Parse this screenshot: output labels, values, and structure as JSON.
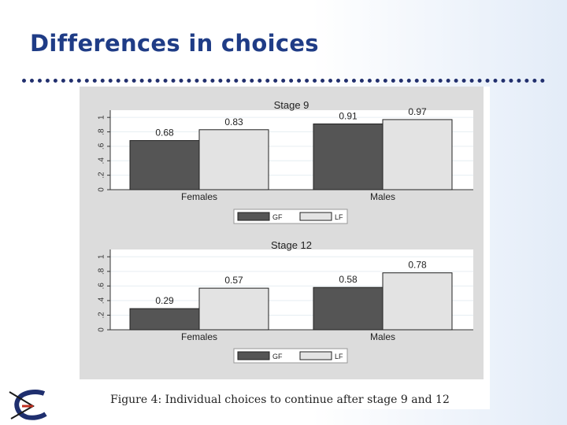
{
  "slide": {
    "title": "Differences in choices",
    "caption": "Figure 4: Individual choices to continue after stage 9 and 12"
  },
  "colors": {
    "title": "#1f3c86",
    "gf": "#555555",
    "lf": "#e3e3e3",
    "panel": "#dcdcdc"
  },
  "chart_data": [
    {
      "type": "bar",
      "title": "Stage 9",
      "categories": [
        "Females",
        "Males"
      ],
      "series": [
        {
          "name": "GF",
          "values": [
            0.68,
            0.91
          ]
        },
        {
          "name": "LF",
          "values": [
            0.83,
            0.97
          ]
        }
      ],
      "data_labels": [
        "0.68",
        "0.83",
        "0.91",
        "0.97"
      ],
      "yticks": [
        "0",
        ".2",
        ".4",
        ".6",
        ".8",
        "1"
      ],
      "ylim": [
        0,
        1.1
      ],
      "grid": true,
      "legend": "bottom"
    },
    {
      "type": "bar",
      "title": "Stage 12",
      "categories": [
        "Females",
        "Males"
      ],
      "series": [
        {
          "name": "GF",
          "values": [
            0.29,
            0.58
          ]
        },
        {
          "name": "LF",
          "values": [
            0.57,
            0.78
          ]
        }
      ],
      "data_labels": [
        "0.29",
        "0.57",
        "0.58",
        "0.78"
      ],
      "yticks": [
        "0",
        ".2",
        ".4",
        ".6",
        ".8",
        "1"
      ],
      "ylim": [
        0,
        1.1
      ],
      "grid": true,
      "legend": "bottom"
    }
  ]
}
